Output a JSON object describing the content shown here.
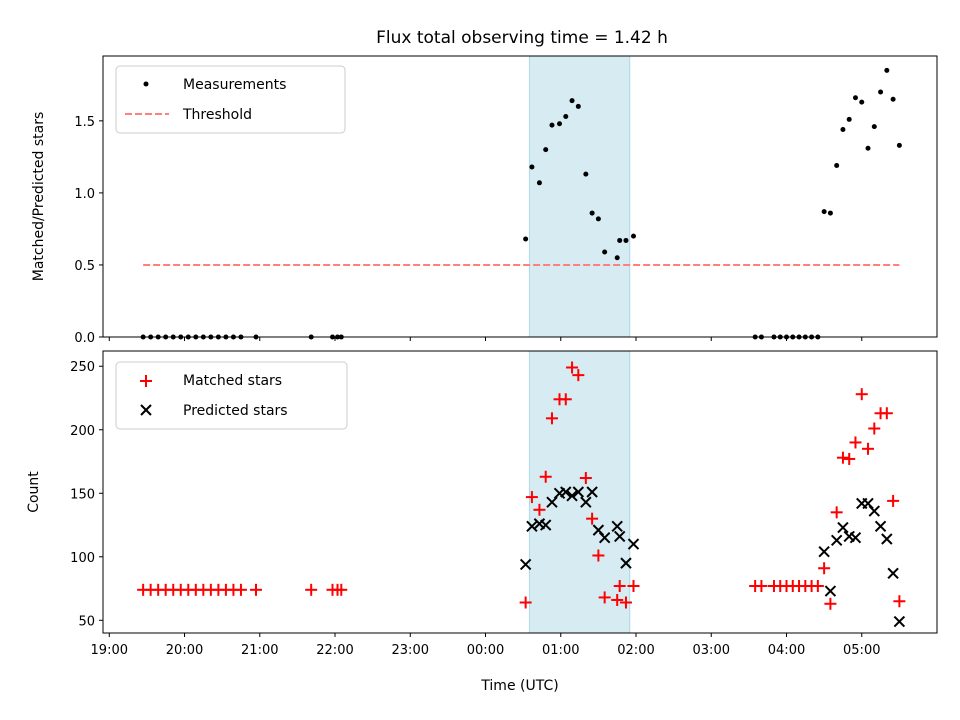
{
  "chart_data": [
    {
      "type": "scatter",
      "title": "Flux total observing time = 1.42 h",
      "xlabel": "",
      "ylabel": "Matched/Predicted stars",
      "xlim": [
        "18:55",
        "06:00"
      ],
      "ylim": [
        0,
        1.95
      ],
      "yticks": [
        0.0,
        0.5,
        1.0,
        1.5
      ],
      "ytick_labels": [
        "0.0",
        "0.5",
        "1.0",
        "1.5"
      ],
      "highlight_span": [
        "00:35",
        "01:55"
      ],
      "legend": {
        "location": "top-left",
        "entries": [
          "Measurements",
          "Threshold"
        ]
      },
      "series": [
        {
          "name": "Measurements",
          "color": "#000000",
          "marker": "dot",
          "points": [
            [
              "19:27",
              0
            ],
            [
              "19:33",
              0
            ],
            [
              "19:39",
              0
            ],
            [
              "19:45",
              0
            ],
            [
              "19:51",
              0
            ],
            [
              "19:57",
              0
            ],
            [
              "20:03",
              0
            ],
            [
              "20:09",
              0
            ],
            [
              "20:15",
              0
            ],
            [
              "20:21",
              0
            ],
            [
              "20:27",
              0
            ],
            [
              "20:33",
              0
            ],
            [
              "20:39",
              0
            ],
            [
              "20:45",
              0
            ],
            [
              "20:57",
              0
            ],
            [
              "21:41",
              0
            ],
            [
              "21:58",
              0
            ],
            [
              "22:02",
              0
            ],
            [
              "22:05",
              0
            ],
            [
              "00:32",
              0.68
            ],
            [
              "00:37",
              1.18
            ],
            [
              "00:43",
              1.07
            ],
            [
              "00:48",
              1.3
            ],
            [
              "00:53",
              1.47
            ],
            [
              "00:59",
              1.48
            ],
            [
              "01:04",
              1.53
            ],
            [
              "01:09",
              1.64
            ],
            [
              "01:14",
              1.6
            ],
            [
              "01:20",
              1.13
            ],
            [
              "01:25",
              0.86
            ],
            [
              "01:30",
              0.82
            ],
            [
              "01:35",
              0.59
            ],
            [
              "01:45",
              0.55
            ],
            [
              "01:47",
              0.67
            ],
            [
              "01:52",
              0.67
            ],
            [
              "01:58",
              0.7
            ],
            [
              "03:35",
              0
            ],
            [
              "03:40",
              0
            ],
            [
              "03:50",
              0
            ],
            [
              "03:55",
              0
            ],
            [
              "04:00",
              0
            ],
            [
              "04:05",
              0
            ],
            [
              "04:10",
              0
            ],
            [
              "04:15",
              0
            ],
            [
              "04:20",
              0
            ],
            [
              "04:25",
              0
            ],
            [
              "04:30",
              0.87
            ],
            [
              "04:35",
              0.86
            ],
            [
              "04:40",
              1.19
            ],
            [
              "04:45",
              1.44
            ],
            [
              "04:50",
              1.51
            ],
            [
              "04:55",
              1.66
            ],
            [
              "05:00",
              1.63
            ],
            [
              "05:05",
              1.31
            ],
            [
              "05:10",
              1.46
            ],
            [
              "05:15",
              1.7
            ],
            [
              "05:20",
              1.85
            ],
            [
              "05:25",
              1.65
            ],
            [
              "05:30",
              1.33
            ]
          ]
        },
        {
          "name": "Threshold",
          "color": "#ff7f7f",
          "style": "dashed",
          "points": [
            [
              "19:27",
              0.5
            ],
            [
              "05:30",
              0.5
            ]
          ]
        }
      ]
    },
    {
      "type": "scatter",
      "title": "",
      "xlabel": "Time (UTC)",
      "ylabel": "Count",
      "xlim": [
        "18:55",
        "06:00"
      ],
      "ylim": [
        40,
        262
      ],
      "yticks": [
        50,
        100,
        150,
        200,
        250
      ],
      "ytick_labels": [
        "50",
        "100",
        "150",
        "200",
        "250"
      ],
      "xticks": [
        "19:00",
        "20:00",
        "21:00",
        "22:00",
        "23:00",
        "00:00",
        "01:00",
        "02:00",
        "03:00",
        "04:00",
        "05:00"
      ],
      "xtick_labels": [
        "19:00",
        "20:00",
        "21:00",
        "22:00",
        "23:00",
        "00:00",
        "01:00",
        "02:00",
        "03:00",
        "04:00",
        "05:00"
      ],
      "highlight_span": [
        "00:35",
        "01:55"
      ],
      "legend": {
        "location": "top-left",
        "entries": [
          "Matched stars",
          "Predicted stars"
        ]
      },
      "series": [
        {
          "name": "Matched stars",
          "color": "#ff0000",
          "marker": "plus",
          "points": [
            [
              "19:27",
              74
            ],
            [
              "19:33",
              74
            ],
            [
              "19:39",
              74
            ],
            [
              "19:45",
              74
            ],
            [
              "19:51",
              74
            ],
            [
              "19:57",
              74
            ],
            [
              "20:03",
              74
            ],
            [
              "20:09",
              74
            ],
            [
              "20:15",
              74
            ],
            [
              "20:21",
              74
            ],
            [
              "20:27",
              74
            ],
            [
              "20:33",
              74
            ],
            [
              "20:39",
              74
            ],
            [
              "20:45",
              74
            ],
            [
              "20:57",
              74
            ],
            [
              "21:41",
              74
            ],
            [
              "21:58",
              74
            ],
            [
              "22:02",
              74
            ],
            [
              "22:05",
              74
            ],
            [
              "00:32",
              64
            ],
            [
              "00:37",
              147
            ],
            [
              "00:43",
              137
            ],
            [
              "00:48",
              163
            ],
            [
              "00:53",
              209
            ],
            [
              "00:59",
              224
            ],
            [
              "01:04",
              224
            ],
            [
              "01:09",
              249
            ],
            [
              "01:14",
              243
            ],
            [
              "01:20",
              162
            ],
            [
              "01:25",
              130
            ],
            [
              "01:30",
              101
            ],
            [
              "01:35",
              68
            ],
            [
              "01:45",
              66
            ],
            [
              "01:47",
              77
            ],
            [
              "01:52",
              64
            ],
            [
              "01:58",
              77
            ],
            [
              "03:35",
              77
            ],
            [
              "03:40",
              77
            ],
            [
              "03:50",
              77
            ],
            [
              "03:55",
              77
            ],
            [
              "04:00",
              77
            ],
            [
              "04:05",
              77
            ],
            [
              "04:10",
              77
            ],
            [
              "04:15",
              77
            ],
            [
              "04:20",
              77
            ],
            [
              "04:25",
              77
            ],
            [
              "04:30",
              91
            ],
            [
              "04:35",
              63
            ],
            [
              "04:40",
              135
            ],
            [
              "04:45",
              178
            ],
            [
              "04:50",
              177
            ],
            [
              "04:55",
              190
            ],
            [
              "05:00",
              228
            ],
            [
              "05:05",
              185
            ],
            [
              "05:10",
              201
            ],
            [
              "05:15",
              213
            ],
            [
              "05:20",
              213
            ],
            [
              "05:25",
              144
            ],
            [
              "05:30",
              65
            ]
          ]
        },
        {
          "name": "Predicted stars",
          "color": "#000000",
          "marker": "x",
          "points": [
            [
              "00:32",
              94
            ],
            [
              "00:37",
              124
            ],
            [
              "00:43",
              126
            ],
            [
              "00:48",
              125
            ],
            [
              "00:53",
              143
            ],
            [
              "00:59",
              150
            ],
            [
              "01:04",
              151
            ],
            [
              "01:09",
              148
            ],
            [
              "01:14",
              151
            ],
            [
              "01:20",
              143
            ],
            [
              "01:25",
              151
            ],
            [
              "01:30",
              121
            ],
            [
              "01:35",
              115
            ],
            [
              "01:45",
              124
            ],
            [
              "01:47",
              116
            ],
            [
              "01:52",
              95
            ],
            [
              "01:58",
              110
            ],
            [
              "04:30",
              104
            ],
            [
              "04:35",
              73
            ],
            [
              "04:40",
              113
            ],
            [
              "04:45",
              123
            ],
            [
              "04:50",
              116
            ],
            [
              "04:55",
              115
            ],
            [
              "05:00",
              142
            ],
            [
              "05:05",
              142
            ],
            [
              "05:10",
              136
            ],
            [
              "05:15",
              124
            ],
            [
              "05:20",
              114
            ],
            [
              "05:25",
              87
            ],
            [
              "05:30",
              49
            ]
          ]
        }
      ]
    }
  ]
}
